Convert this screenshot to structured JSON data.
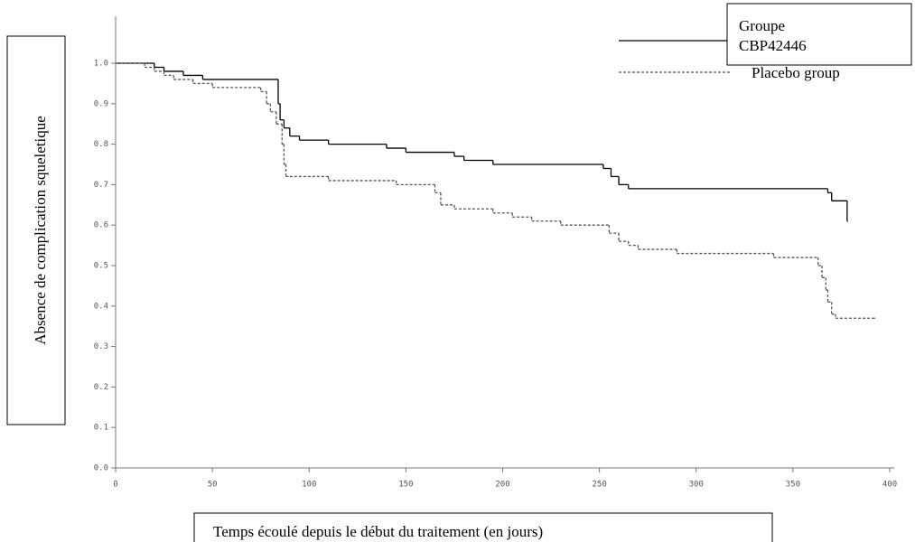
{
  "chart_data": {
    "type": "step",
    "ylabel": "Absence de complication squeletique",
    "xlabel": "Temps écoulé depuis le début du traitement (en jours)",
    "xlim": [
      0,
      400
    ],
    "xticks": [
      0,
      50,
      100,
      150,
      200,
      250,
      300,
      350,
      400
    ],
    "ylim": [
      0,
      1.05
    ],
    "yticks": [
      {
        "value": 0,
        "label": "0.0"
      },
      0.1,
      0.2,
      0.3,
      0.4,
      0.5,
      0.6,
      0.7,
      0.8,
      0.9,
      {
        "value": 1,
        "label": "1.0"
      }
    ],
    "series": [
      {
        "name": "Groupe CBP42446",
        "color": "#000000",
        "dash": false,
        "x": [
          0,
          20,
          25,
          35,
          45,
          84,
          85,
          87,
          90,
          95,
          110,
          140,
          150,
          175,
          180,
          195,
          252,
          256,
          260,
          265,
          368,
          370,
          378
        ],
        "values": [
          1.0,
          0.99,
          0.98,
          0.97,
          0.96,
          0.9,
          0.86,
          0.84,
          0.82,
          0.81,
          0.8,
          0.79,
          0.78,
          0.77,
          0.76,
          0.75,
          0.74,
          0.72,
          0.7,
          0.69,
          0.68,
          0.66,
          0.61
        ]
      },
      {
        "name": "Placebo group",
        "color": "#555555",
        "dash": true,
        "x": [
          0,
          15,
          20,
          25,
          30,
          40,
          50,
          75,
          78,
          80,
          83,
          86,
          87,
          88,
          90,
          110,
          145,
          165,
          168,
          175,
          195,
          205,
          215,
          230,
          255,
          260,
          265,
          270,
          290,
          340,
          363,
          365,
          367,
          368,
          370,
          372,
          392
        ],
        "values": [
          1.0,
          0.99,
          0.98,
          0.97,
          0.96,
          0.95,
          0.94,
          0.93,
          0.9,
          0.88,
          0.85,
          0.8,
          0.75,
          0.72,
          0.72,
          0.71,
          0.7,
          0.68,
          0.65,
          0.64,
          0.63,
          0.62,
          0.61,
          0.6,
          0.58,
          0.56,
          0.55,
          0.54,
          0.53,
          0.52,
          0.5,
          0.47,
          0.44,
          0.41,
          0.38,
          0.37,
          0.37
        ]
      }
    ]
  }
}
